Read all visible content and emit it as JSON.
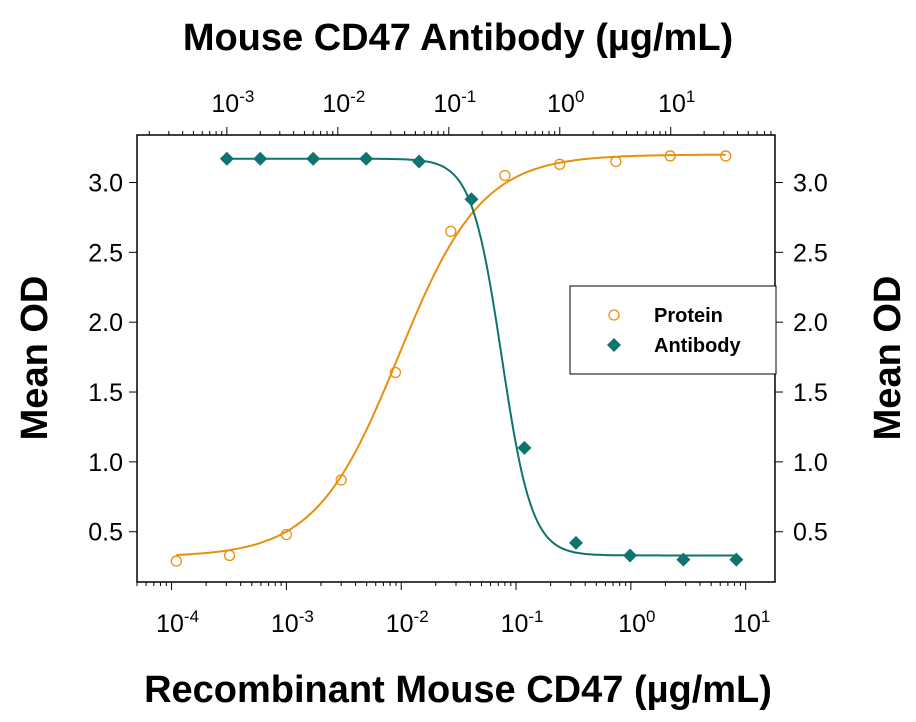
{
  "chart_data": {
    "type": "scatter",
    "title_top": "Mouse CD47 Antibody (µg/mL)",
    "xlabel": "Recombinant Mouse CD47 (µg/mL)",
    "ylabel_left": "Mean OD",
    "ylabel_right": "Mean OD",
    "x_scale": "log",
    "x2_scale": "log",
    "xlim": [
      5e-05,
      18
    ],
    "x2lim": [
      0.000155,
      87
    ],
    "ylim": [
      0.14,
      3.34
    ],
    "grid": false,
    "legend_position": "center-right",
    "x_ticks": [
      {
        "base": "10",
        "exp": "-4",
        "value": 0.0001
      },
      {
        "base": "10",
        "exp": "-3",
        "value": 0.001
      },
      {
        "base": "10",
        "exp": "-2",
        "value": 0.01
      },
      {
        "base": "10",
        "exp": "-1",
        "value": 0.1
      },
      {
        "base": "10",
        "exp": "0",
        "value": 1
      },
      {
        "base": "10",
        "exp": "1",
        "value": 10
      }
    ],
    "x2_ticks": [
      {
        "base": "10",
        "exp": "-3",
        "value": 0.001
      },
      {
        "base": "10",
        "exp": "-2",
        "value": 0.01
      },
      {
        "base": "10",
        "exp": "-1",
        "value": 0.1
      },
      {
        "base": "10",
        "exp": "0",
        "value": 1
      },
      {
        "base": "10",
        "exp": "1",
        "value": 10
      }
    ],
    "y_ticks": [
      "0.5",
      "1.0",
      "1.5",
      "2.0",
      "2.5",
      "3.0"
    ],
    "series": [
      {
        "name": "Protein",
        "axis": "bottom",
        "marker": "open-circle",
        "color": "#E8900C",
        "x": [
          0.00011,
          0.00032,
          0.001,
          0.003,
          0.0089,
          0.027,
          0.08,
          0.24,
          0.74,
          2.2,
          6.7
        ],
        "y": [
          0.29,
          0.33,
          0.48,
          0.87,
          1.64,
          2.65,
          3.05,
          3.13,
          3.15,
          3.19,
          3.19
        ]
      },
      {
        "name": "Antibody",
        "axis": "top",
        "marker": "filled-diamond",
        "color": "#0E7470",
        "x": [
          0.001,
          0.002,
          0.006,
          0.018,
          0.054,
          0.16,
          0.48,
          1.4,
          4.3,
          13,
          39
        ],
        "y": [
          3.17,
          3.17,
          3.17,
          3.17,
          3.15,
          2.88,
          1.1,
          0.42,
          0.33,
          0.3,
          0.3
        ]
      }
    ]
  }
}
